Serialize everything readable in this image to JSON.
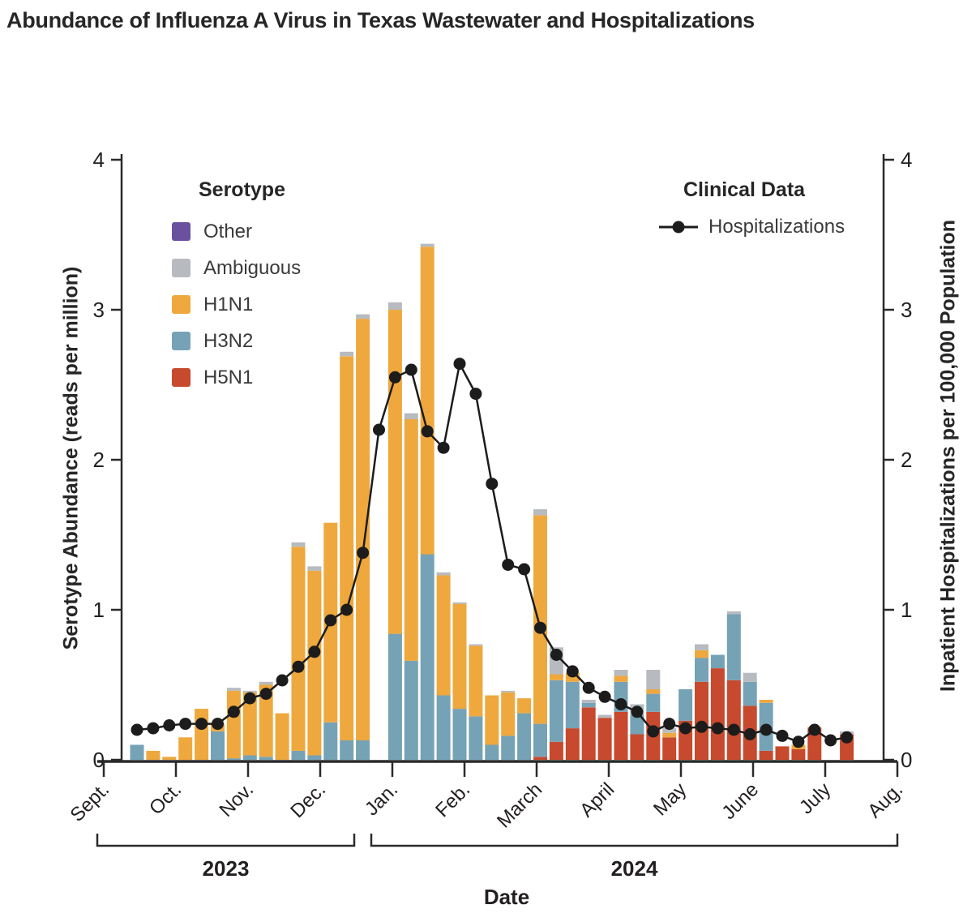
{
  "title": "Abundance of Influenza A Virus in Texas Wastewater and Hospitalizations",
  "legend_serotype": {
    "header": "Serotype",
    "items": [
      {
        "key": "other",
        "label": "Other"
      },
      {
        "key": "ambiguous",
        "label": "Ambiguous"
      },
      {
        "key": "h1n1",
        "label": "H1N1"
      },
      {
        "key": "h3n2",
        "label": "H3N2"
      },
      {
        "key": "h5n1",
        "label": "H5N1"
      }
    ]
  },
  "legend_clinical": {
    "header": "Clinical Data",
    "item": "Hospitalizations"
  },
  "chart_data": {
    "type": "bar",
    "subtype": "stacked-bars-with-line-overlay",
    "title": "Abundance of Influenza A Virus in Texas Wastewater and Hospitalizations",
    "left_axis": {
      "label": "Serotype Abundance (reads per million)",
      "ticks": [
        0,
        1,
        2,
        3,
        4
      ],
      "range": [
        0,
        4
      ]
    },
    "right_axis": {
      "label": "Inpatient Hospitalizations per 100,000 Population",
      "ticks": [
        0,
        1,
        2,
        3,
        4
      ],
      "range": [
        0,
        4
      ]
    },
    "x_axis": {
      "label": "Date",
      "months": [
        "Sept.",
        "Oct.",
        "Nov.",
        "Dec.",
        "Jan.",
        "Feb.",
        "March",
        "April",
        "May",
        "June",
        "July",
        "Aug."
      ],
      "year_groups": [
        {
          "label": "2023",
          "from_month": 0,
          "to_month": 3
        },
        {
          "label": "2024",
          "from_month": 4,
          "to_month": 11
        }
      ]
    },
    "series_colors": {
      "other": "#6a51a0",
      "ambiguous": "#b7bbbf",
      "h1n1": "#eea83e",
      "h3n2": "#76a2b6",
      "h5n1": "#c7492e",
      "line": "#1c1c1c"
    },
    "stack_order": [
      "h5n1",
      "h3n2",
      "h1n1",
      "ambiguous",
      "other"
    ],
    "weeks": [
      {
        "h3n2": 0.1
      },
      {
        "h1n1": 0.06
      },
      {
        "h1n1": 0.02
      },
      {
        "h1n1": 0.15
      },
      {
        "h1n1": 0.34
      },
      {
        "h3n2": 0.19,
        "h1n1": 0.05
      },
      {
        "h3n2": 0.01,
        "h1n1": 0.45,
        "ambiguous": 0.02
      },
      {
        "h3n2": 0.03,
        "h1n1": 0.42,
        "ambiguous": 0.01
      },
      {
        "h3n2": 0.02,
        "h1n1": 0.48,
        "ambiguous": 0.02
      },
      {
        "h1n1": 0.31
      },
      {
        "h3n2": 0.06,
        "h1n1": 1.36,
        "ambiguous": 0.03
      },
      {
        "h3n2": 0.03,
        "h1n1": 1.23,
        "ambiguous": 0.03
      },
      {
        "h3n2": 0.25,
        "h1n1": 1.33
      },
      {
        "h3n2": 0.13,
        "h1n1": 2.56,
        "ambiguous": 0.03
      },
      {
        "h3n2": 0.13,
        "h1n1": 2.81,
        "ambiguous": 0.03
      },
      null,
      {
        "h3n2": 0.84,
        "h1n1": 2.16,
        "ambiguous": 0.05
      },
      {
        "h3n2": 0.66,
        "h1n1": 1.61,
        "ambiguous": 0.04
      },
      {
        "h3n2": 1.37,
        "h1n1": 2.05,
        "ambiguous": 0.02
      },
      {
        "h3n2": 0.43,
        "h1n1": 0.8,
        "ambiguous": 0.02
      },
      {
        "h3n2": 0.34,
        "h1n1": 0.7,
        "ambiguous": 0.01
      },
      {
        "h3n2": 0.29,
        "h1n1": 0.47,
        "ambiguous": 0.01
      },
      {
        "h3n2": 0.1,
        "h1n1": 0.33
      },
      {
        "h3n2": 0.16,
        "h1n1": 0.29,
        "ambiguous": 0.01
      },
      {
        "h3n2": 0.31,
        "h1n1": 0.1
      },
      {
        "h5n1": 0.02,
        "h3n2": 0.22,
        "h1n1": 1.39,
        "ambiguous": 0.04
      },
      {
        "h5n1": 0.12,
        "h3n2": 0.41,
        "h1n1": 0.04,
        "ambiguous": 0.18
      },
      {
        "h5n1": 0.21,
        "h3n2": 0.31,
        "h1n1": 0.06
      },
      {
        "h5n1": 0.35,
        "h3n2": 0.03,
        "ambiguous": 0.02
      },
      {
        "h5n1": 0.28,
        "ambiguous": 0.02
      },
      {
        "h5n1": 0.32,
        "h3n2": 0.2,
        "h1n1": 0.04,
        "ambiguous": 0.04
      },
      {
        "h5n1": 0.17,
        "h3n2": 0.13,
        "ambiguous": 0.07
      },
      {
        "h5n1": 0.32,
        "h3n2": 0.12,
        "h1n1": 0.03,
        "ambiguous": 0.13
      },
      {
        "h5n1": 0.15,
        "h1n1": 0.03,
        "ambiguous": 0.03
      },
      {
        "h5n1": 0.26,
        "h3n2": 0.21
      },
      {
        "h5n1": 0.52,
        "h3n2": 0.16,
        "h1n1": 0.05,
        "ambiguous": 0.04
      },
      {
        "h5n1": 0.61,
        "h3n2": 0.09
      },
      {
        "h5n1": 0.53,
        "h3n2": 0.44,
        "ambiguous": 0.02
      },
      {
        "h5n1": 0.36,
        "h3n2": 0.16,
        "ambiguous": 0.06
      },
      {
        "h5n1": 0.06,
        "h3n2": 0.32,
        "h1n1": 0.02
      },
      {
        "h5n1": 0.09
      },
      {
        "h5n1": 0.07,
        "h1n1": 0.03
      },
      {
        "h5n1": 0.21,
        "h1n1": 0.01
      },
      null,
      {
        "h5n1": 0.17,
        "ambiguous": 0.02
      }
    ],
    "hospitalizations": [
      0.2,
      0.21,
      0.23,
      0.24,
      0.24,
      0.24,
      0.32,
      0.41,
      0.44,
      0.53,
      0.62,
      0.72,
      0.93,
      1.0,
      1.38,
      2.2,
      2.55,
      2.6,
      2.19,
      2.08,
      2.64,
      2.44,
      1.84,
      1.3,
      1.27,
      0.88,
      0.7,
      0.59,
      0.48,
      0.42,
      0.37,
      0.32,
      0.19,
      0.24,
      0.21,
      0.22,
      0.21,
      0.2,
      0.17,
      0.2,
      0.16,
      0.12,
      0.2,
      0.13,
      0.15
    ]
  }
}
